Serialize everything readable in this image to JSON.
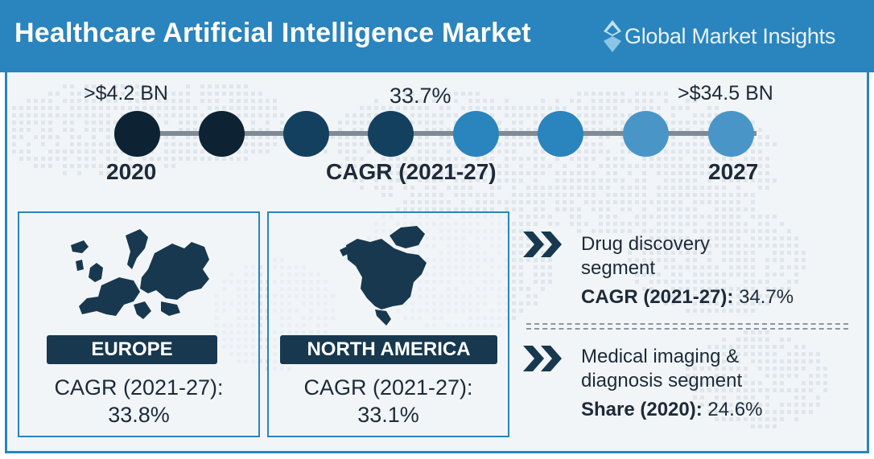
{
  "header": {
    "title": "Healthcare Artificial Intelligence Market",
    "logo_text": "Global Market Insights",
    "background": "#2a84bd"
  },
  "timeline": {
    "start_value": ">$4.2 BN",
    "mid_value": "33.7%",
    "end_value": ">$34.5 BN",
    "start_year": "2020",
    "mid_label": "CAGR (2021-27)",
    "end_year": "2027",
    "dot_colors": [
      "#0d2233",
      "#0d2233",
      "#14405f",
      "#14405f",
      "#2a84bd",
      "#2a84bd",
      "#4a95c8",
      "#4a95c8"
    ]
  },
  "regions": [
    {
      "name": "EUROPE",
      "cagr_label": "CAGR (2021-27):",
      "cagr_value": "33.8%"
    },
    {
      "name": "NORTH AMERICA",
      "cagr_label": "CAGR (2021-27):",
      "cagr_value": "33.1%"
    }
  ],
  "segments": [
    {
      "line1": "Drug discovery",
      "line2": "segment",
      "stat_label": "CAGR (2021-27):",
      "stat_value": "34.7%"
    },
    {
      "line1": "Medical imaging &",
      "line2": "diagnosis segment",
      "stat_label": "Share (2020):",
      "stat_value": "24.6%"
    }
  ],
  "colors": {
    "dark_navy": "#17384f",
    "accent_blue": "#2a84bd",
    "text": "#1d2a38"
  },
  "icons": {
    "logo": "diamond-logo-icon",
    "bullet": "double-chevron-icon",
    "europe_map": "europe-map-icon",
    "north_america_map": "north-america-map-icon"
  }
}
